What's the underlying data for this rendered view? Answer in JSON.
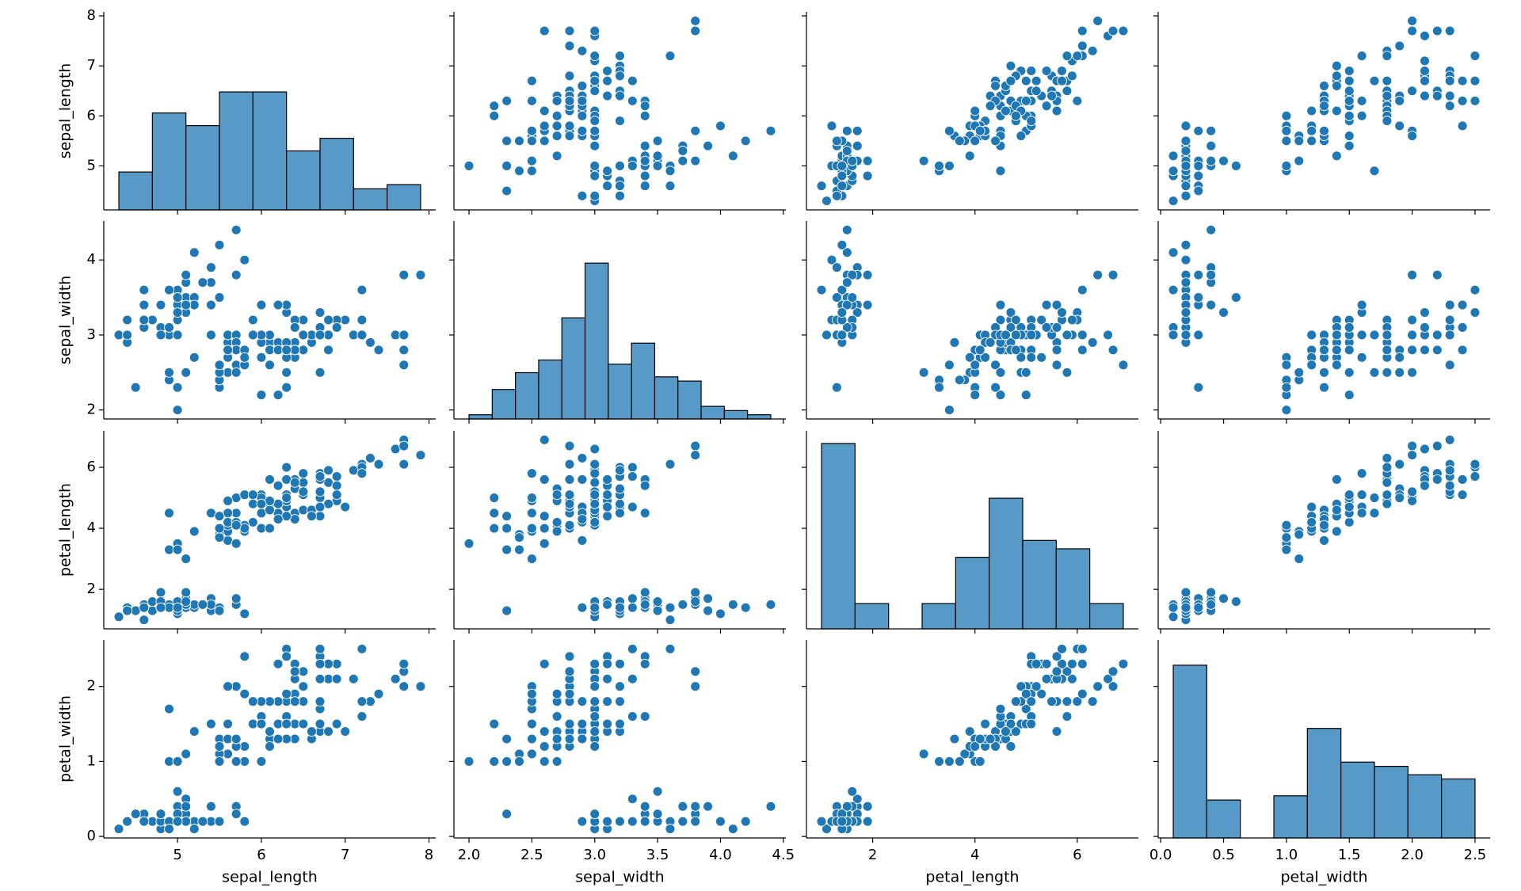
{
  "chart_data": {
    "type": "pairplot",
    "color": "#1f77b4",
    "hist_color": "#5799c7",
    "hist_edge_color": "#000000",
    "point_edge_color": "#ffffff",
    "variables": [
      {
        "name": "sepal_length",
        "lim": [
          4.12,
          8.08
        ],
        "xticks": [
          5,
          6,
          7,
          8
        ],
        "yticks": [
          5,
          6,
          7,
          8
        ],
        "values": [
          5.1,
          4.9,
          4.7,
          4.6,
          5.0,
          5.4,
          4.6,
          5.0,
          4.4,
          4.9,
          5.4,
          4.8,
          4.8,
          4.3,
          5.8,
          5.7,
          5.4,
          5.1,
          5.7,
          5.1,
          5.4,
          5.1,
          4.6,
          5.1,
          4.8,
          5.0,
          5.0,
          5.2,
          5.2,
          4.7,
          4.8,
          5.4,
          5.2,
          5.5,
          4.9,
          5.0,
          5.5,
          4.9,
          4.4,
          5.1,
          5.0,
          4.5,
          4.4,
          5.0,
          5.1,
          4.8,
          5.1,
          4.6,
          5.3,
          5.0,
          7.0,
          6.4,
          6.9,
          5.5,
          6.5,
          5.7,
          6.3,
          4.9,
          6.6,
          5.2,
          5.0,
          5.9,
          6.0,
          6.1,
          5.6,
          6.7,
          5.6,
          5.8,
          6.2,
          5.6,
          5.9,
          6.1,
          6.3,
          6.1,
          6.4,
          6.6,
          6.8,
          6.7,
          6.0,
          5.7,
          5.5,
          5.5,
          5.8,
          6.0,
          5.4,
          6.0,
          6.7,
          6.3,
          5.6,
          5.5,
          5.5,
          6.1,
          5.8,
          5.0,
          5.6,
          5.7,
          5.7,
          6.2,
          5.1,
          5.7,
          6.3,
          5.8,
          7.1,
          6.3,
          6.5,
          7.6,
          4.9,
          7.3,
          6.7,
          7.2,
          6.5,
          6.4,
          6.8,
          5.7,
          5.8,
          6.4,
          6.5,
          7.7,
          7.7,
          6.0,
          6.9,
          5.6,
          7.7,
          6.3,
          6.7,
          7.2,
          6.2,
          6.1,
          6.4,
          7.2,
          7.4,
          7.9,
          6.4,
          6.3,
          6.1,
          7.7,
          6.3,
          6.4,
          6.0,
          6.9,
          6.7,
          6.9,
          5.8,
          6.8,
          6.7,
          6.7,
          6.3,
          6.5,
          6.2,
          5.9
        ]
      },
      {
        "name": "sepal_width",
        "lim": [
          1.88,
          4.52
        ],
        "xticks": [
          {
            "value": 2,
            "label": "2.0"
          },
          2.5,
          {
            "value": 3,
            "label": "3.0"
          },
          3.5,
          {
            "value": 4,
            "label": "4.0"
          },
          4.5
        ],
        "yticks": [
          2,
          3,
          4
        ],
        "values": [
          3.5,
          3.0,
          3.2,
          3.1,
          3.6,
          3.9,
          3.4,
          3.4,
          2.9,
          3.1,
          3.7,
          3.4,
          3.0,
          3.0,
          4.0,
          4.4,
          3.9,
          3.5,
          3.8,
          3.8,
          3.4,
          3.7,
          3.6,
          3.3,
          3.4,
          3.0,
          3.4,
          3.5,
          3.4,
          3.2,
          3.1,
          3.4,
          4.1,
          4.2,
          3.1,
          3.2,
          3.5,
          3.6,
          3.0,
          3.4,
          3.5,
          2.3,
          3.2,
          3.5,
          3.8,
          3.0,
          3.8,
          3.2,
          3.7,
          3.3,
          3.2,
          3.2,
          3.1,
          2.3,
          2.8,
          2.8,
          3.3,
          2.4,
          2.9,
          2.7,
          2.0,
          3.0,
          2.2,
          2.9,
          2.9,
          3.1,
          3.0,
          2.7,
          2.2,
          2.5,
          3.2,
          2.8,
          2.5,
          2.8,
          2.9,
          3.0,
          2.8,
          3.0,
          2.9,
          2.6,
          2.4,
          2.4,
          2.7,
          2.7,
          3.0,
          3.4,
          3.1,
          2.3,
          3.0,
          2.5,
          2.6,
          3.0,
          2.6,
          2.3,
          2.7,
          3.0,
          2.9,
          2.9,
          2.5,
          2.8,
          3.3,
          2.7,
          3.0,
          2.9,
          3.0,
          3.0,
          2.5,
          2.9,
          2.5,
          3.6,
          3.2,
          2.7,
          3.0,
          2.5,
          2.8,
          3.2,
          3.0,
          3.8,
          2.6,
          2.2,
          3.2,
          2.8,
          2.8,
          2.7,
          3.3,
          3.2,
          2.8,
          3.0,
          2.8,
          3.0,
          2.8,
          3.8,
          2.8,
          2.8,
          2.6,
          3.0,
          3.4,
          3.1,
          3.0,
          3.1,
          3.1,
          3.1,
          2.7,
          3.2,
          3.3,
          3.0,
          2.5,
          3.0,
          3.4,
          3.0
        ]
      },
      {
        "name": "petal_length",
        "lim": [
          0.705,
          7.195
        ],
        "xticks": [
          2,
          4,
          6
        ],
        "yticks": [
          2,
          4,
          6
        ],
        "values": [
          1.4,
          1.4,
          1.3,
          1.5,
          1.4,
          1.7,
          1.4,
          1.5,
          1.4,
          1.5,
          1.5,
          1.6,
          1.4,
          1.1,
          1.2,
          1.5,
          1.3,
          1.4,
          1.7,
          1.5,
          1.7,
          1.5,
          1.0,
          1.7,
          1.9,
          1.6,
          1.6,
          1.5,
          1.4,
          1.6,
          1.6,
          1.5,
          1.5,
          1.4,
          1.5,
          1.2,
          1.3,
          1.4,
          1.3,
          1.5,
          1.3,
          1.3,
          1.3,
          1.6,
          1.9,
          1.4,
          1.6,
          1.4,
          1.5,
          1.4,
          4.7,
          4.5,
          4.9,
          4.0,
          4.6,
          4.5,
          4.7,
          3.3,
          4.6,
          3.9,
          3.5,
          4.2,
          4.0,
          4.7,
          3.6,
          4.4,
          4.5,
          4.1,
          4.5,
          3.9,
          4.8,
          4.0,
          4.9,
          4.7,
          4.3,
          4.4,
          4.8,
          5.0,
          4.5,
          3.5,
          3.8,
          3.7,
          3.9,
          5.1,
          4.5,
          4.5,
          4.7,
          4.4,
          4.1,
          4.0,
          4.4,
          4.6,
          4.0,
          3.3,
          4.2,
          4.2,
          4.2,
          4.3,
          3.0,
          4.1,
          6.0,
          5.1,
          5.9,
          5.6,
          5.8,
          6.6,
          4.5,
          6.3,
          5.8,
          6.1,
          5.1,
          5.3,
          5.5,
          5.0,
          5.1,
          5.3,
          5.5,
          6.7,
          6.9,
          5.0,
          5.7,
          4.9,
          6.7,
          4.9,
          5.7,
          6.0,
          4.8,
          4.9,
          5.6,
          5.8,
          6.1,
          6.4,
          5.6,
          5.1,
          5.6,
          6.1,
          5.6,
          5.5,
          4.8,
          5.4,
          5.6,
          5.1,
          5.1,
          5.9,
          5.7,
          5.2,
          5.0,
          5.2,
          5.4,
          5.1
        ]
      },
      {
        "name": "petal_width",
        "lim": [
          -0.02,
          2.62
        ],
        "xticks": [
          {
            "value": 0,
            "label": "0.0"
          },
          0.5,
          {
            "value": 1,
            "label": "1.0"
          },
          1.5,
          {
            "value": 2,
            "label": "2.0"
          },
          2.5
        ],
        "yticks": [
          0,
          1,
          2
        ],
        "values": [
          0.2,
          0.2,
          0.2,
          0.2,
          0.2,
          0.4,
          0.3,
          0.2,
          0.2,
          0.1,
          0.2,
          0.2,
          0.1,
          0.1,
          0.2,
          0.4,
          0.4,
          0.3,
          0.3,
          0.3,
          0.2,
          0.4,
          0.2,
          0.5,
          0.2,
          0.2,
          0.4,
          0.2,
          0.2,
          0.2,
          0.2,
          0.4,
          0.1,
          0.2,
          0.2,
          0.2,
          0.2,
          0.1,
          0.2,
          0.2,
          0.3,
          0.3,
          0.2,
          0.6,
          0.4,
          0.3,
          0.2,
          0.2,
          0.2,
          0.2,
          1.4,
          1.5,
          1.5,
          1.3,
          1.5,
          1.3,
          1.6,
          1.0,
          1.3,
          1.4,
          1.0,
          1.5,
          1.0,
          1.4,
          1.3,
          1.4,
          1.5,
          1.0,
          1.5,
          1.1,
          1.8,
          1.3,
          1.5,
          1.2,
          1.3,
          1.4,
          1.4,
          1.7,
          1.5,
          1.0,
          1.1,
          1.0,
          1.2,
          1.6,
          1.5,
          1.6,
          1.5,
          1.3,
          1.3,
          1.3,
          1.2,
          1.4,
          1.2,
          1.0,
          1.3,
          1.2,
          1.3,
          1.3,
          1.1,
          1.3,
          2.5,
          1.9,
          2.1,
          1.8,
          2.2,
          2.1,
          1.7,
          1.8,
          1.8,
          2.5,
          2.0,
          1.9,
          2.1,
          2.0,
          2.4,
          2.3,
          1.8,
          2.2,
          2.3,
          1.5,
          2.3,
          2.0,
          2.0,
          1.8,
          2.1,
          1.8,
          1.8,
          1.8,
          2.1,
          1.6,
          1.9,
          2.0,
          2.2,
          1.5,
          1.4,
          2.3,
          2.4,
          1.8,
          1.8,
          2.1,
          2.4,
          2.3,
          1.9,
          2.3,
          2.5,
          2.3,
          1.9,
          2.0,
          2.3,
          1.8
        ]
      }
    ],
    "histograms": [
      {
        "bins": [
          4.3,
          4.7,
          5.1,
          5.5,
          5.9,
          6.3,
          6.7,
          7.1,
          7.5,
          7.9
        ],
        "counts": [
          9,
          23,
          20,
          28,
          28,
          14,
          17,
          5,
          6
        ],
        "ylim": [
          0,
          47
        ]
      },
      {
        "bins": [
          2.0,
          2.1846,
          2.3692,
          2.5538,
          2.7385,
          2.9231,
          3.1077,
          3.2923,
          3.4769,
          3.6615,
          3.8462,
          4.0308,
          4.2154,
          4.4
        ],
        "counts": [
          1,
          7,
          11,
          14,
          24,
          37,
          13,
          18,
          10,
          9,
          3,
          2,
          1
        ],
        "ylim": [
          0,
          47
        ]
      },
      {
        "bins": [
          1.0,
          1.6556,
          2.3111,
          2.9667,
          3.6222,
          4.2778,
          4.9333,
          5.5889,
          6.2444,
          6.9
        ],
        "counts": [
          44,
          6,
          0,
          6,
          17,
          31,
          21,
          19,
          6
        ],
        "ylim": [
          0,
          47
        ]
      },
      {
        "bins": [
          0.1,
          0.3667,
          0.6333,
          0.9,
          1.1667,
          1.4333,
          1.7,
          1.9667,
          2.2333,
          2.5
        ],
        "counts": [
          41,
          9,
          0,
          10,
          26,
          18,
          17,
          15,
          14
        ],
        "ylim": [
          0,
          47
        ]
      }
    ]
  }
}
